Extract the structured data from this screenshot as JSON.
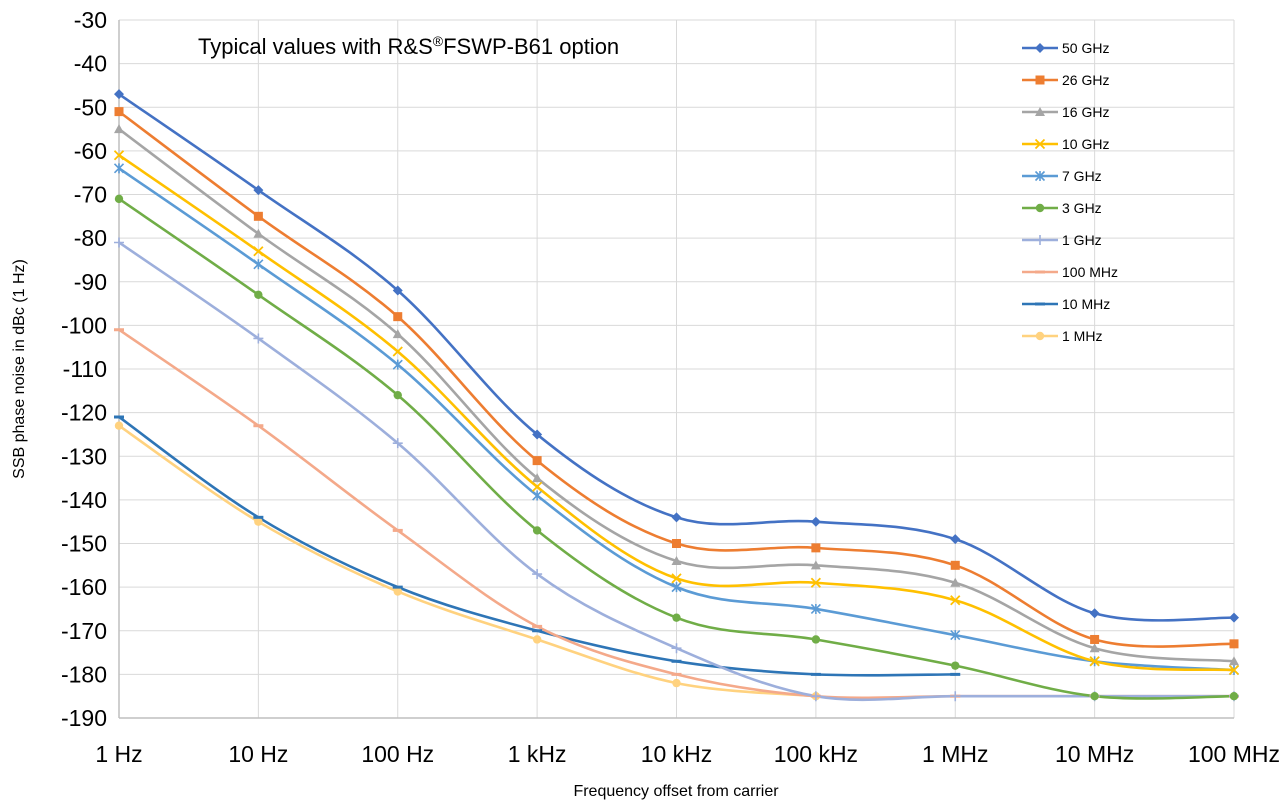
{
  "chart_data": {
    "type": "line",
    "title": "Typical values with R&S®FSWP-B61 option",
    "title_main": "Typical values with R&S",
    "title_sup": "®",
    "title_rest": "FSWP-B61 option",
    "xlabel": "Frequency offset from carrier",
    "ylabel": "SSB phase noise in dBc (1 Hz)",
    "x_scale": "log",
    "x": [
      "1 Hz",
      "10 Hz",
      "100 Hz",
      "1 kHz",
      "10 kHz",
      "100 kHz",
      "1 MHz",
      "10 MHz",
      "100 MHz"
    ],
    "ylim": [
      -190,
      -30
    ],
    "yticks": [
      "-30",
      "-40",
      "-50",
      "-60",
      "-70",
      "-80",
      "-90",
      "-100",
      "-110",
      "-120",
      "-130",
      "-140",
      "-150",
      "-160",
      "-170",
      "-180",
      "-190"
    ],
    "grid": true,
    "legend_position": "top-right",
    "series": [
      {
        "name": "50 GHz",
        "color": "#4472c4",
        "marker": "diamond",
        "values": [
          -47,
          -69,
          -92,
          -125,
          -144,
          -145,
          -149,
          -166,
          -167
        ]
      },
      {
        "name": "26 GHz",
        "color": "#ed7d31",
        "marker": "square",
        "values": [
          -51,
          -75,
          -98,
          -131,
          -150,
          -151,
          -155,
          -172,
          -173
        ]
      },
      {
        "name": "16 GHz",
        "color": "#a5a5a5",
        "marker": "triangle",
        "values": [
          -55,
          -79,
          -102,
          -135,
          -154,
          -155,
          -159,
          -174,
          -177
        ]
      },
      {
        "name": "10 GHz",
        "color": "#ffc000",
        "marker": "x",
        "values": [
          -61,
          -83,
          -106,
          -137,
          -158,
          -159,
          -163,
          -177,
          -179
        ]
      },
      {
        "name": "7 GHz",
        "color": "#5b9bd5",
        "marker": "star",
        "values": [
          -64,
          -86,
          -109,
          -139,
          -160,
          -165,
          -171,
          -177,
          -179
        ]
      },
      {
        "name": "3 GHz",
        "color": "#70ad47",
        "marker": "circle",
        "values": [
          -71,
          -93,
          -116,
          -147,
          -167,
          -172,
          -178,
          -185,
          -185
        ]
      },
      {
        "name": "1 GHz",
        "color": "#9dafdc",
        "marker": "plus",
        "values": [
          -81,
          -103,
          -127,
          -157,
          -174,
          -185,
          -185,
          -185,
          -185
        ]
      },
      {
        "name": "100 MHz",
        "color": "#f4a98a",
        "marker": "dash",
        "values": [
          -101,
          -123,
          -147,
          -169,
          -180,
          -185,
          -185,
          -185,
          -185
        ]
      },
      {
        "name": "10 MHz",
        "color": "#2e75b6",
        "marker": "dash",
        "values": [
          -121,
          -144,
          -160,
          -170,
          -177,
          -180,
          -180,
          null,
          null
        ]
      },
      {
        "name": "1 MHz",
        "color": "#ffd27f",
        "marker": "circle",
        "values": [
          -123,
          -145,
          -161,
          -172,
          -182,
          -185,
          null,
          null,
          null
        ]
      }
    ]
  }
}
